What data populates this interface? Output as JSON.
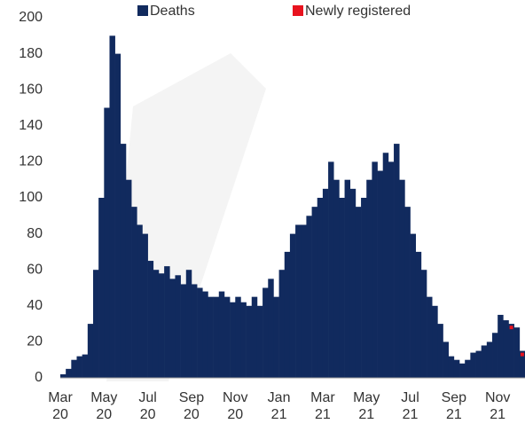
{
  "chart_data": {
    "type": "bar",
    "categories": [
      "Mar 20",
      null,
      null,
      null,
      null,
      null,
      null,
      null,
      "May 20",
      null,
      null,
      null,
      null,
      null,
      null,
      null,
      "Jul 20",
      null,
      null,
      null,
      null,
      null,
      null,
      null,
      "Sep 20",
      null,
      null,
      null,
      null,
      null,
      null,
      null,
      "Nov 20",
      null,
      null,
      null,
      null,
      null,
      null,
      null,
      "Jan 21",
      null,
      null,
      null,
      null,
      null,
      null,
      null,
      "Mar 21",
      null,
      null,
      null,
      null,
      null,
      null,
      null,
      "May 21",
      null,
      null,
      null,
      null,
      null,
      null,
      null,
      "Jul 21",
      null,
      null,
      null,
      null,
      null,
      null,
      null,
      "Sep 21",
      null,
      null,
      null,
      null,
      null,
      null,
      null,
      "Nov 21",
      null,
      null,
      null,
      null
    ],
    "series": [
      {
        "name": "Deaths",
        "color": "#112a5e",
        "values": [
          2,
          5,
          10,
          12,
          13,
          30,
          60,
          100,
          150,
          190,
          180,
          130,
          110,
          95,
          85,
          80,
          65,
          60,
          58,
          62,
          55,
          57,
          52,
          60,
          52,
          50,
          48,
          45,
          45,
          48,
          45,
          42,
          45,
          42,
          40,
          45,
          40,
          50,
          55,
          45,
          60,
          70,
          80,
          85,
          85,
          90,
          95,
          100,
          105,
          120,
          110,
          100,
          110,
          105,
          95,
          100,
          110,
          120,
          115,
          125,
          120,
          130,
          110,
          95,
          80,
          70,
          60,
          45,
          40,
          30,
          20,
          12,
          10,
          8,
          10,
          14,
          15,
          18,
          20,
          25,
          35,
          32,
          30,
          28,
          15
        ]
      },
      {
        "name": "Newly registered",
        "color": "#e8121e",
        "values": [
          null,
          null,
          null,
          null,
          null,
          null,
          null,
          null,
          null,
          null,
          null,
          null,
          null,
          null,
          null,
          null,
          null,
          null,
          null,
          null,
          null,
          null,
          null,
          null,
          null,
          null,
          null,
          null,
          null,
          null,
          null,
          null,
          null,
          null,
          null,
          null,
          null,
          null,
          null,
          null,
          null,
          null,
          null,
          null,
          null,
          null,
          null,
          null,
          null,
          null,
          null,
          null,
          null,
          null,
          null,
          null,
          null,
          null,
          null,
          null,
          null,
          null,
          null,
          null,
          null,
          null,
          null,
          null,
          null,
          null,
          null,
          null,
          null,
          null,
          null,
          null,
          null,
          null,
          null,
          null,
          null,
          null,
          28,
          null,
          13
        ]
      }
    ],
    "ylim": [
      0,
      200
    ],
    "yticks": [
      0,
      20,
      40,
      60,
      80,
      100,
      120,
      140,
      160,
      180,
      200
    ],
    "grid": false
  }
}
